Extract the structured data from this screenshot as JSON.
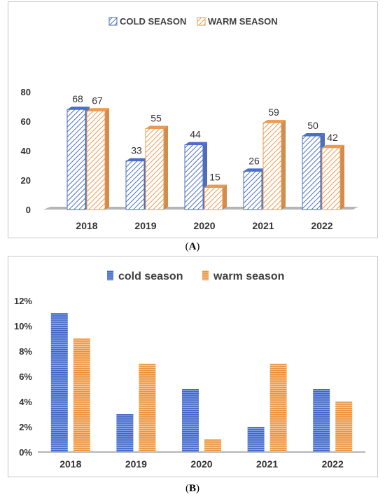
{
  "captions": {
    "a": "A",
    "b": "B"
  },
  "colors": {
    "cold": "#4a6fc9",
    "warm": "#ed9a4e",
    "cold_dark": "#3355a8",
    "warm_dark": "#c9782f",
    "floor": "#b5b5b5",
    "axis_text": "#333333"
  },
  "chart_data": [
    {
      "type": "bar",
      "style": "3d-clustered-hatched",
      "categories": [
        "2018",
        "2019",
        "2020",
        "2021",
        "2022"
      ],
      "series": [
        {
          "name": "COLD SEASON",
          "values": [
            68,
            33,
            44,
            26,
            50
          ]
        },
        {
          "name": "WARM SEASON",
          "values": [
            67,
            55,
            15,
            59,
            42
          ]
        }
      ],
      "yticks": [
        "0",
        "20",
        "40",
        "60",
        "80"
      ],
      "ylim": [
        0,
        80
      ],
      "legend": "top-center",
      "data_labels": true,
      "grid": false
    },
    {
      "type": "bar",
      "style": "clustered-striped",
      "categories": [
        "2018",
        "2019",
        "2020",
        "2021",
        "2022"
      ],
      "series": [
        {
          "name": "cold season",
          "values": [
            11,
            3,
            5,
            2,
            5
          ]
        },
        {
          "name": "warm season",
          "values": [
            9,
            7,
            1,
            7,
            4
          ]
        }
      ],
      "yticks": [
        "0%",
        "2%",
        "4%",
        "6%",
        "8%",
        "10%",
        "12%"
      ],
      "ylim": [
        0,
        12
      ],
      "legend": "top-center",
      "data_labels": false,
      "grid": false
    }
  ]
}
